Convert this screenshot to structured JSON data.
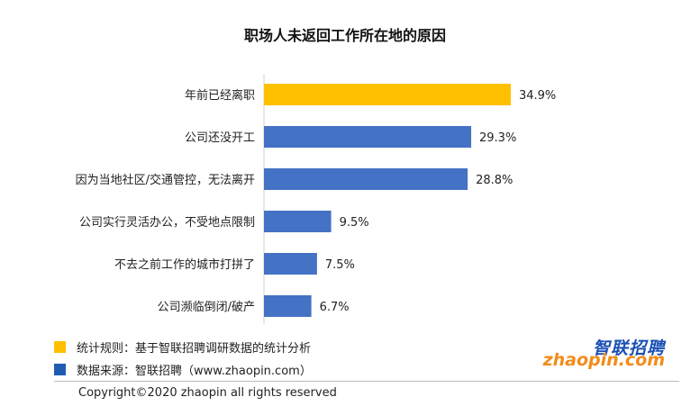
{
  "chart_data": {
    "type": "bar",
    "orientation": "horizontal",
    "title": "职场人未返回工作所在地的原因",
    "categories": [
      "年前已经离职",
      "公司还没开工",
      "因为当地社区/交通管控，无法离开",
      "公司实行灵活办公，不受地点限制",
      "不去之前工作的城市打拼了",
      "公司濒临倒闭/破产"
    ],
    "values": [
      34.9,
      29.3,
      28.8,
      9.5,
      7.5,
      6.7
    ],
    "value_labels": [
      "34.9%",
      "29.3%",
      "28.8%",
      "9.5%",
      "7.5%",
      "6.7%"
    ],
    "highlight_index": 0,
    "xlim": [
      0,
      40
    ],
    "grid": false,
    "xlabel": "",
    "ylabel": ""
  },
  "colors": {
    "highlight": "#FFC000",
    "bar": "#4472C4",
    "source_swatch": "#1F5CB1"
  },
  "notes": {
    "rule": "统计规则：基于智联招聘调研数据的统计分析",
    "source": "数据来源：智联招聘（www.zhaopin.com）"
  },
  "copyright": "Copyright©2020 zhaopin all rights reserved",
  "logo": {
    "cn": "智联招聘",
    "en": "zhaopin.com"
  }
}
